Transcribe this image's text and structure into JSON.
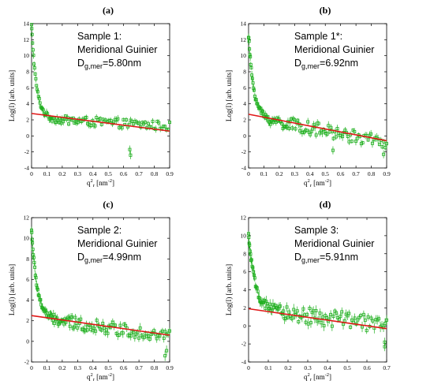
{
  "chart_data": [
    {
      "type": "scatter",
      "panel_label": "(a)",
      "annotation": {
        "line1": "Sample 1:",
        "line2": "Meridional Guinier",
        "d_main": "D",
        "d_sub": "g,mer",
        "d_val": "=5.80nm"
      },
      "xlabel": {
        "main": "q",
        "sup": "2",
        "sub": "r",
        "rest": " [nm",
        "unit_sup": "-2",
        "end": "]"
      },
      "ylabel": "Log(I) [arb. units]",
      "xlim": [
        0,
        0.9
      ],
      "ylim": [
        -4,
        14
      ],
      "xticks": [
        0,
        0.1,
        0.2,
        0.3,
        0.4,
        0.5,
        0.6,
        0.7,
        0.8,
        0.9
      ],
      "yticks": [
        -4,
        -2,
        0,
        2,
        4,
        6,
        8,
        10,
        12,
        14
      ],
      "curve": {
        "y_start": 13.8,
        "y_floor": 2.2,
        "decay": 32,
        "slope": -1.1,
        "noise": 0.55,
        "points": 120,
        "errbar": 0.35
      },
      "outliers": [
        [
          0.64,
          -1.7
        ],
        [
          0.645,
          -2.4
        ]
      ],
      "fit_line": {
        "x": [
          0,
          0.9
        ],
        "y": [
          2.8,
          0.6
        ]
      },
      "colors": {
        "data": "#22b022",
        "fit": "#e01818"
      }
    },
    {
      "type": "scatter",
      "panel_label": "(b)",
      "annotation": {
        "line1": "Sample 1*:",
        "line2": "Meridional Guinier",
        "d_main": "D",
        "d_sub": "g,mer",
        "d_val": "=6.92nm"
      },
      "xlabel": {
        "main": "q",
        "sup": "2",
        "sub": "r",
        "rest": " [nm",
        "unit_sup": "-2",
        "end": "]"
      },
      "ylabel": "Log(I) [arb. units]",
      "xlim": [
        0,
        0.9
      ],
      "ylim": [
        -4,
        14
      ],
      "xticks": [
        0,
        0.1,
        0.2,
        0.3,
        0.4,
        0.5,
        0.6,
        0.7,
        0.8,
        0.9
      ],
      "yticks": [
        -4,
        -2,
        0,
        2,
        4,
        6,
        8,
        10,
        12,
        14
      ],
      "curve": {
        "y_start": 12.5,
        "y_floor": 2.4,
        "decay": 30,
        "slope": -3.6,
        "noise": 0.8,
        "points": 130,
        "errbar": 0.4
      },
      "outliers": [
        [
          0.88,
          -2.3
        ],
        [
          0.55,
          -1.8
        ]
      ],
      "fit_line": {
        "x": [
          0,
          0.9
        ],
        "y": [
          2.7,
          -0.6
        ]
      },
      "colors": {
        "data": "#22b022",
        "fit": "#e01818"
      }
    },
    {
      "type": "scatter",
      "panel_label": "(c)",
      "annotation": {
        "line1": "Sample 2:",
        "line2": "Meridional Guinier",
        "d_main": "D",
        "d_sub": "g,mer",
        "d_val": "=4.99nm"
      },
      "xlabel": {
        "main": "q",
        "sup": "2",
        "sub": "r",
        "rest": " [nm",
        "unit_sup": "-2",
        "end": "]"
      },
      "ylabel": "Log(I) [arb. units]",
      "xlim": [
        0,
        0.9
      ],
      "ylim": [
        -2,
        12
      ],
      "xticks": [
        0,
        0.1,
        0.2,
        0.3,
        0.4,
        0.5,
        0.6,
        0.7,
        0.8,
        0.9
      ],
      "yticks": [
        -2,
        0,
        2,
        4,
        6,
        8,
        10,
        12
      ],
      "curve": {
        "y_start": 10.8,
        "y_floor": 2.3,
        "decay": 28,
        "slope": -2.0,
        "noise": 0.6,
        "points": 130,
        "errbar": 0.35
      },
      "outliers": [
        [
          0.87,
          -1.4
        ],
        [
          0.88,
          -0.9
        ]
      ],
      "fit_line": {
        "x": [
          0,
          0.9
        ],
        "y": [
          2.5,
          0.6
        ]
      },
      "colors": {
        "data": "#22b022",
        "fit": "#e01818"
      }
    },
    {
      "type": "scatter",
      "panel_label": "(d)",
      "annotation": {
        "line1": "Sample 3:",
        "line2": "Meridional Guinier",
        "d_main": "D",
        "d_sub": "g,mer",
        "d_val": "=5.91nm"
      },
      "xlabel": {
        "main": "q",
        "sup": "2",
        "sub": "r",
        "rest": " [nm",
        "unit_sup": "-2",
        "end": "]"
      },
      "ylabel": "Log(I) [arb. units]",
      "xlim": [
        0,
        0.7
      ],
      "ylim": [
        -4,
        12
      ],
      "xticks": [
        0,
        0.1,
        0.2,
        0.3,
        0.4,
        0.5,
        0.6,
        0.7
      ],
      "yticks": [
        -4,
        -2,
        0,
        2,
        4,
        6,
        8,
        10,
        12
      ],
      "curve": {
        "y_start": 10.0,
        "y_floor": 1.9,
        "decay": 30,
        "slope": -2.6,
        "noise": 0.9,
        "points": 120,
        "errbar": 0.45
      },
      "outliers": [
        [
          0.69,
          -1.8
        ],
        [
          0.69,
          -2.3
        ]
      ],
      "fit_line": {
        "x": [
          0,
          0.7
        ],
        "y": [
          1.9,
          -0.3
        ]
      },
      "colors": {
        "data": "#22b022",
        "fit": "#e01818"
      }
    }
  ]
}
